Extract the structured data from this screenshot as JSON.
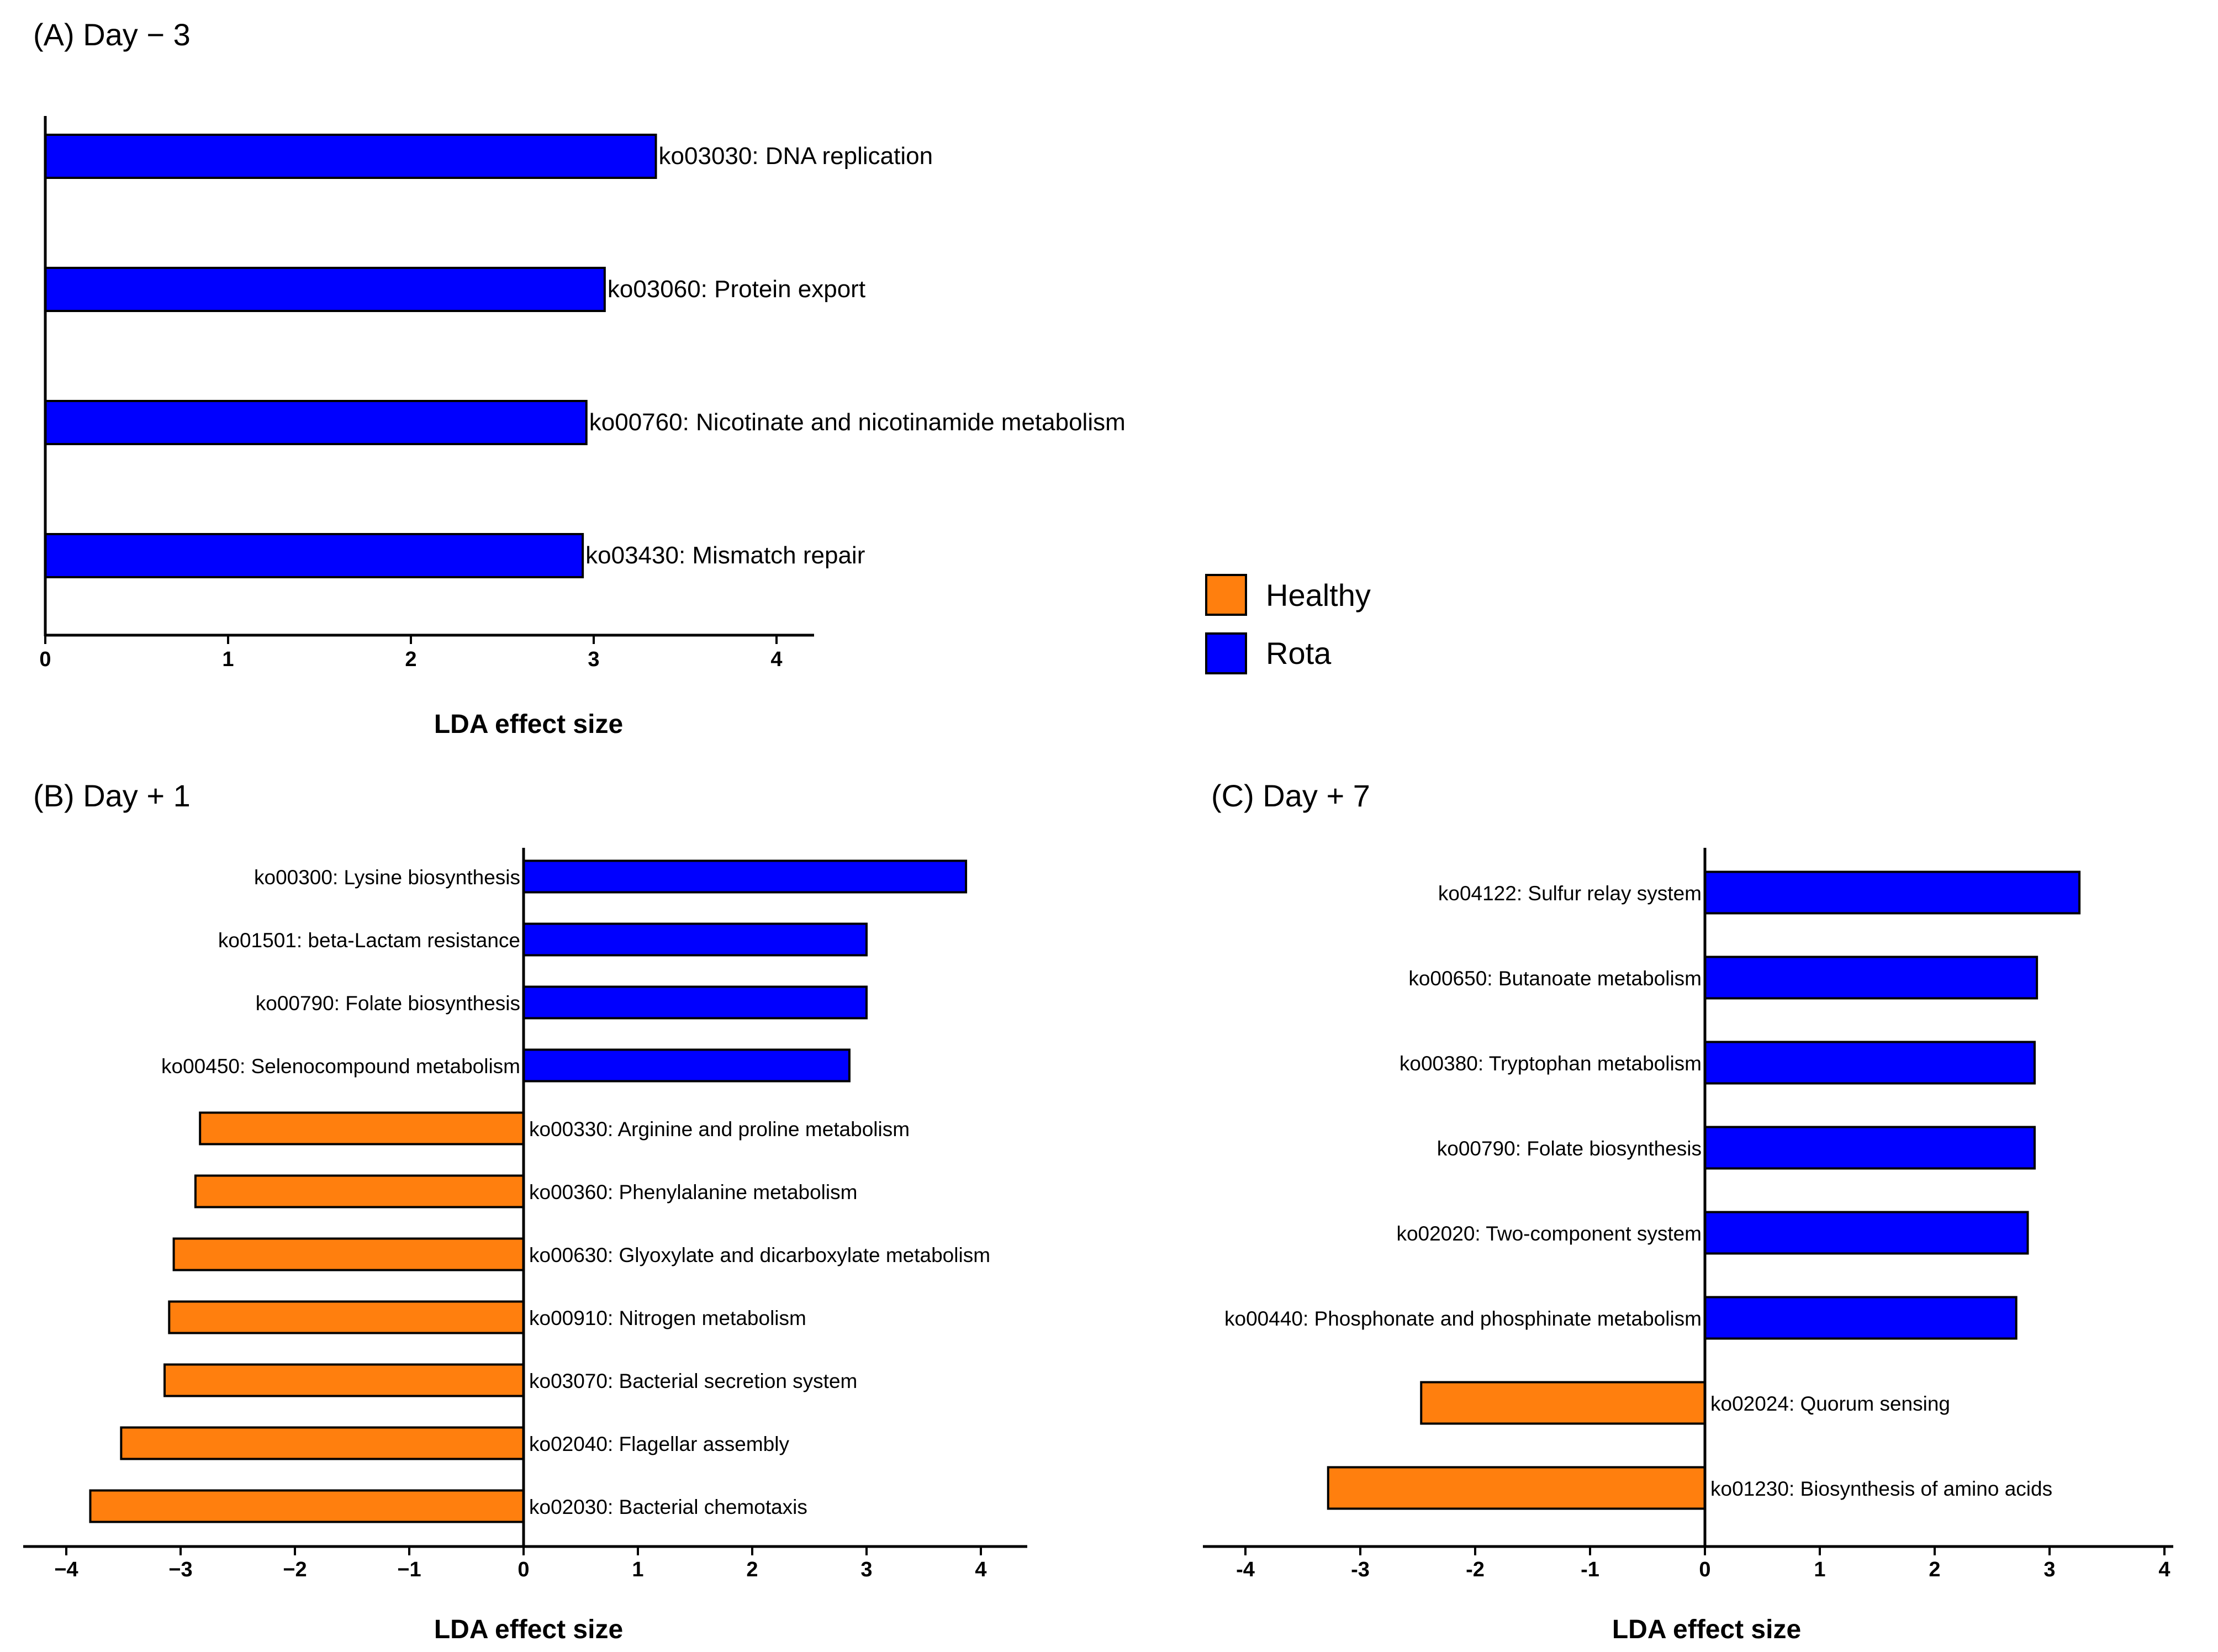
{
  "legend": {
    "items": [
      {
        "label": "Healthy",
        "color": "#ff7f0e"
      },
      {
        "label": "Rota",
        "color": "#0000ff"
      }
    ]
  },
  "colors": {
    "healthy": "#ff7f0e",
    "rota": "#0000ff"
  },
  "chart_data": [
    {
      "type": "bar",
      "orientation": "horizontal",
      "title": "(A) Day − 3",
      "xlabel": "LDA effect size",
      "xlim": [
        0,
        4.2
      ],
      "xticks": [
        "0",
        "1",
        "2",
        "3",
        "4"
      ],
      "categories": [
        "ko03030: DNA replication",
        "ko03060: Protein export",
        "ko00760: Nicotinate and nicotinamide metabolism",
        "ko03430: Mismatch repair"
      ],
      "values": [
        3.34,
        3.06,
        2.96,
        2.94
      ],
      "groups": [
        "Rota",
        "Rota",
        "Rota",
        "Rota"
      ]
    },
    {
      "type": "bar",
      "orientation": "horizontal",
      "title": "(B) Day + 1",
      "xlabel": "LDA effect size",
      "xlim": [
        -4.3,
        4.4
      ],
      "xticks": [
        "−4",
        "−3",
        "−2",
        "−1",
        "0",
        "1",
        "2",
        "3",
        "4"
      ],
      "categories": [
        "ko00300: Lysine biosynthesis",
        "ko01501: beta-Lactam resistance",
        "ko00790: Folate biosynthesis",
        "ko00450: Selenocompound metabolism",
        "ko00330: Arginine and proline metabolism",
        "ko00360: Phenylalanine metabolism",
        "ko00630: Glyoxylate  and dicarboxylate metabolism",
        "ko00910: Nitrogen metabolism",
        "ko03070: Bacterial secretion system",
        "ko02040: Flagellar assembly",
        "ko02030: Bacterial chemotaxis"
      ],
      "values": [
        3.87,
        3.0,
        3.0,
        2.85,
        -2.83,
        -2.87,
        -3.06,
        -3.1,
        -3.14,
        -3.52,
        -3.79
      ],
      "groups": [
        "Rota",
        "Rota",
        "Rota",
        "Rota",
        "Healthy",
        "Healthy",
        "Healthy",
        "Healthy",
        "Healthy",
        "Healthy",
        "Healthy"
      ]
    },
    {
      "type": "bar",
      "orientation": "horizontal",
      "title": "(C) Day + 7",
      "xlabel": "LDA effect size",
      "xlim": [
        -4.3,
        4.3
      ],
      "xticks": [
        "-4",
        "-3",
        "-2",
        "-1",
        "0",
        "1",
        "2",
        "3",
        "4"
      ],
      "categories": [
        "ko04122: Sulfur relay system",
        "ko00650: Butanoate metabolism",
        "ko00380: Tryptophan  metabolism",
        "ko00790: Folate biosynthesis",
        "ko02020: Two-component system",
        "ko00440: Phosphonate and phosphinate metabolism",
        "ko02024: Quorum sensing",
        "ko01230: Biosynthesis of amino acids"
      ],
      "values": [
        3.26,
        2.89,
        2.87,
        2.87,
        2.81,
        2.71,
        -2.47,
        -3.28
      ],
      "groups": [
        "Rota",
        "Rota",
        "Rota",
        "Rota",
        "Rota",
        "Rota",
        "Healthy",
        "Healthy"
      ]
    }
  ]
}
